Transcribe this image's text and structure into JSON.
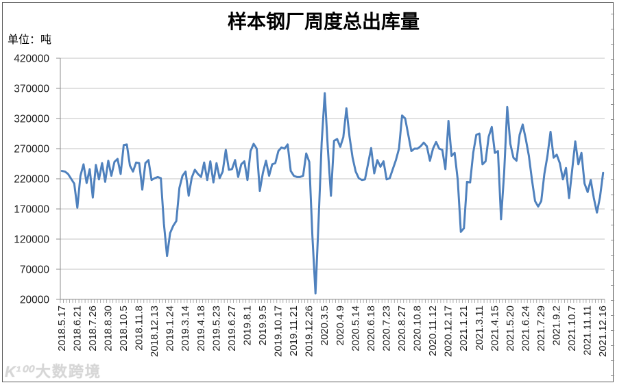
{
  "header": {
    "title": "样本钢厂周度总出库量",
    "unit_label": "单位：吨"
  },
  "watermark": {
    "logo": "K¹⁰⁰",
    "text": "大数跨境"
  },
  "chart_data": {
    "type": "line",
    "title": "样本钢厂周度总出库量",
    "ylabel": "单位：吨",
    "xlabel": "",
    "grid": true,
    "legend": "none",
    "ylim": [
      20000,
      420000
    ],
    "y_ticks": [
      20000,
      70000,
      120000,
      170000,
      220000,
      270000,
      320000,
      370000,
      420000
    ],
    "line_color": "#4F81BD",
    "gridline_color": "#C3C3C3",
    "axis_color": "#8C8C8C",
    "label_every": 5,
    "x_tick_labels": [
      "2018.5.17",
      "2018.6.21",
      "2018.7.26",
      "2018.8.30",
      "2018.10.5",
      "2018.11.8",
      "2018.12.13",
      "2019.1.24",
      "2019.3.14",
      "2019.4.18",
      "2019.5.23",
      "2019.6.27",
      "2019.8.1",
      "2019.9.5",
      "2019.10.17",
      "2019.11.21",
      "2019.12.26",
      "2020.3.5",
      "2020.4.9",
      "2020.5.14",
      "2020.6.18",
      "2020.7.23",
      "2020.8.27",
      "2020.10.8",
      "2020.11.12",
      "2020.12.17",
      "2021.1.21",
      "2021.3.11",
      "2021.4.15",
      "2021.5.20",
      "2021.6.24",
      "2021.7.29",
      "2021.9.2",
      "2021.10.7",
      "2021.11.11",
      "2021.12.16"
    ],
    "values": [
      233000,
      232000,
      228000,
      220000,
      212000,
      172000,
      225000,
      244000,
      213000,
      236000,
      189000,
      243000,
      219000,
      246000,
      215000,
      250000,
      225000,
      248000,
      253000,
      228000,
      276000,
      277000,
      242000,
      232000,
      247000,
      246000,
      202000,
      246000,
      251000,
      218000,
      221000,
      223000,
      221000,
      145000,
      92000,
      130000,
      142000,
      150000,
      205000,
      225000,
      232000,
      192000,
      222000,
      235000,
      228000,
      223000,
      247000,
      218000,
      249000,
      214000,
      246000,
      221000,
      232000,
      268000,
      235000,
      236000,
      251000,
      223000,
      244000,
      249000,
      218000,
      266000,
      278000,
      270000,
      200000,
      230000,
      250000,
      225000,
      244000,
      246000,
      266000,
      272000,
      270000,
      277000,
      233000,
      225000,
      223000,
      223000,
      225000,
      262000,
      248000,
      125000,
      30000,
      150000,
      280000,
      362000,
      270000,
      192000,
      283000,
      286000,
      273000,
      289000,
      337000,
      290000,
      255000,
      232000,
      221000,
      218000,
      219000,
      245000,
      271000,
      229000,
      251000,
      240000,
      249000,
      219000,
      221000,
      236000,
      251000,
      270000,
      325000,
      320000,
      293000,
      266000,
      270000,
      270000,
      274000,
      280000,
      274000,
      250000,
      270000,
      281000,
      270000,
      268000,
      236000,
      316000,
      258000,
      263000,
      218000,
      132000,
      138000,
      215000,
      214000,
      263000,
      293000,
      295000,
      244000,
      249000,
      290000,
      306000,
      263000,
      266000,
      153000,
      230000,
      339000,
      278000,
      255000,
      250000,
      293000,
      310000,
      286000,
      258000,
      218000,
      183000,
      174000,
      183000,
      228000,
      258000,
      298000,
      255000,
      260000,
      246000,
      219000,
      238000,
      188000,
      235000,
      282000,
      244000,
      263000,
      212000,
      198000,
      218000,
      188000,
      164000,
      190000,
      230000
    ]
  }
}
